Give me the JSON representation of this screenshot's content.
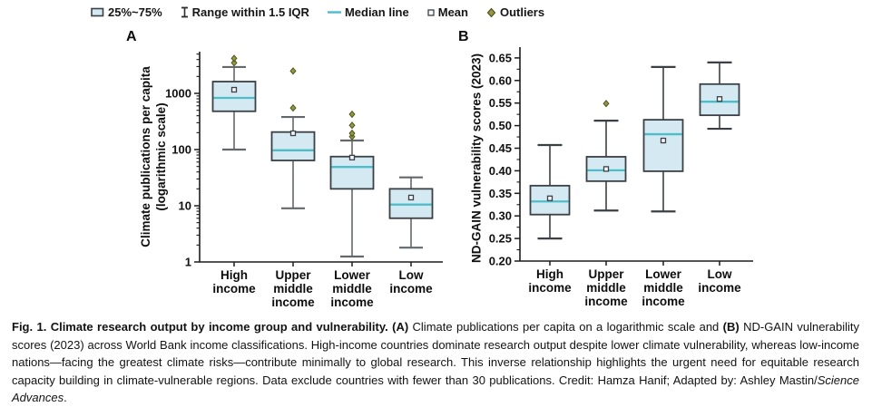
{
  "colors": {
    "box_fill": "#d5e9f2",
    "box_stroke": "#3a4045",
    "median_line": "#4dbdca",
    "whisker_a": "#63686c",
    "whisker_b": "#3a4045",
    "mean_fill": "#f4f7f8",
    "mean_stroke": "#3d4145",
    "outlier_fill": "#94983e",
    "outlier_stroke": "#4f531f",
    "axis": "#1c1c1c"
  },
  "legend": {
    "items": [
      {
        "icon": "box-range-icon",
        "label": "25%~75%"
      },
      {
        "icon": "iqr-whisker-icon",
        "label": "Range within 1.5 IQR"
      },
      {
        "icon": "median-line-icon",
        "label": "Median line"
      },
      {
        "icon": "mean-marker-icon",
        "label": "Mean"
      },
      {
        "icon": "outlier-diamond-icon",
        "label": "Outliers"
      }
    ]
  },
  "panels": {
    "a": "A",
    "b": "B"
  },
  "chart_data": [
    {
      "type": "boxplot",
      "panel": "A",
      "ylabel": "Climate publications per capita (logarithmic scale)",
      "ylabel_lines": [
        "Climate publications per capita",
        "(logarithmic scale)"
      ],
      "yscale": "log",
      "ylim": [
        1,
        5500
      ],
      "yticks": [
        1,
        10,
        100,
        1000
      ],
      "grid": false,
      "legend_position": "top",
      "categories": [
        [
          "High",
          "income"
        ],
        [
          "Upper",
          "middle",
          "income"
        ],
        [
          "Lower",
          "middle",
          "income"
        ],
        [
          "Low",
          "income"
        ]
      ],
      "boxes": [
        {
          "name": "High income",
          "whisker_low": 100,
          "q1": 480,
          "median": 830,
          "mean": 1160,
          "q3": 1620,
          "whisker_high": 2940,
          "outliers": [
            3500,
            4200
          ]
        },
        {
          "name": "Upper middle income",
          "whisker_low": 9,
          "q1": 64,
          "median": 97,
          "mean": 195,
          "q3": 205,
          "whisker_high": 380,
          "outliers": [
            550,
            2500
          ]
        },
        {
          "name": "Lower middle income",
          "whisker_low": 1.25,
          "q1": 20,
          "median": 49,
          "mean": 72,
          "q3": 75,
          "whisker_high": 145,
          "outliers": [
            170,
            195,
            270,
            425
          ]
        },
        {
          "name": "Low income",
          "whisker_low": 1.8,
          "q1": 6,
          "median": 10.5,
          "mean": 14,
          "q3": 20,
          "whisker_high": 32,
          "outliers": []
        }
      ]
    },
    {
      "type": "boxplot",
      "panel": "B",
      "ylabel": "ND-GAIN vulnerability scores (2023)",
      "ylabel_lines": [
        "ND-GAIN vulnerability scores (2023)"
      ],
      "yscale": "linear",
      "ylim": [
        0.2,
        0.67
      ],
      "yticks": [
        0.2,
        0.25,
        0.3,
        0.35,
        0.4,
        0.45,
        0.5,
        0.55,
        0.6,
        0.65
      ],
      "grid": false,
      "legend_position": "top",
      "categories": [
        [
          "High",
          "income"
        ],
        [
          "Upper",
          "middle",
          "income"
        ],
        [
          "Lower",
          "middle",
          "income"
        ],
        [
          "Low",
          "income"
        ]
      ],
      "boxes": [
        {
          "name": "High income",
          "whisker_low": 0.25,
          "q1": 0.303,
          "median": 0.332,
          "mean": 0.339,
          "q3": 0.367,
          "whisker_high": 0.457,
          "outliers": []
        },
        {
          "name": "Upper middle income",
          "whisker_low": 0.312,
          "q1": 0.377,
          "median": 0.401,
          "mean": 0.404,
          "q3": 0.431,
          "whisker_high": 0.511,
          "outliers": [
            0.549
          ]
        },
        {
          "name": "Lower middle income",
          "whisker_low": 0.31,
          "q1": 0.399,
          "median": 0.481,
          "mean": 0.467,
          "q3": 0.513,
          "whisker_high": 0.63,
          "outliers": []
        },
        {
          "name": "Low income",
          "whisker_low": 0.493,
          "q1": 0.523,
          "median": 0.553,
          "mean": 0.559,
          "q3": 0.592,
          "whisker_high": 0.64,
          "outliers": []
        }
      ]
    }
  ],
  "caption": {
    "lead": "Fig. 1. Climate research output by income group and vulnerability. ",
    "a_marker": "(A)",
    "after_a": " Climate publications per capita on a logarithmic scale and ",
    "b_marker": "(B)",
    "after_b": " ND-GAIN vulnerability scores (2023) across World Bank income classifications. High-income countries dominate research output despite lower climate vulnerability, whereas low-income nations—facing the greatest climate risks—contribute minimally to global research. This inverse relationship highlights the urgent need for equitable research capacity building in climate-vulnerable regions. Data exclude countries with fewer than 30 publications. Credit: Hamza Hanif; Adapted by: Ashley Mastin/",
    "source": "Science Advances",
    "tail": "."
  }
}
